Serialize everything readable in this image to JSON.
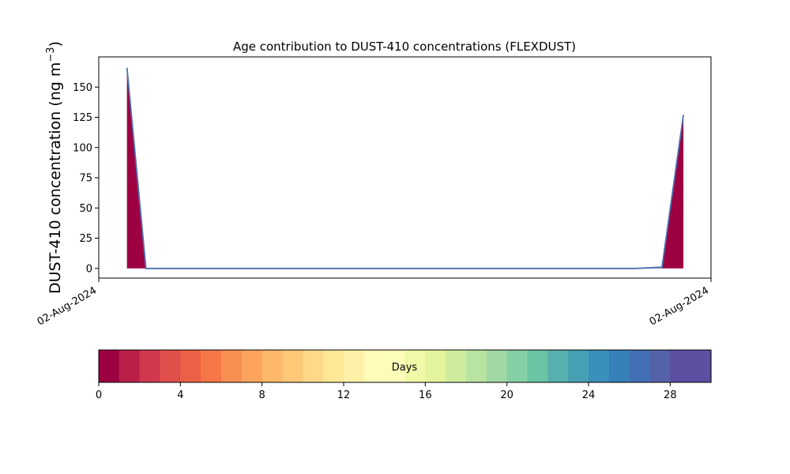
{
  "chart_data": [
    {
      "type": "area",
      "title": "Age contribution to DUST-410 concentrations (FLEXDUST)",
      "ylabel": "DUST-410 concentration (ng m",
      "ylabel_sup": "−3",
      "ylabel_tail": ")",
      "xlabel": "",
      "x_tick_labels": [
        "02-Aug-2024",
        "02-Aug-2024"
      ],
      "x_domain": [
        0,
        1
      ],
      "ylim": [
        -8,
        175
      ],
      "y_ticks": [
        0,
        25,
        50,
        75,
        100,
        125,
        150
      ],
      "grid": false,
      "fill_color": "#9e0142",
      "line_color": "#4b6fad",
      "x": [
        0.046,
        0.077,
        0.877,
        0.92,
        0.955
      ],
      "total": [
        166,
        0,
        0,
        1,
        127
      ],
      "series": [
        {
          "age_bin": 0,
          "values": [
            166,
            0,
            0,
            0,
            127
          ]
        },
        {
          "age_bin": 27,
          "values": [
            0,
            0,
            0,
            1,
            0
          ]
        }
      ]
    },
    {
      "type": "heatmap",
      "label": "Days",
      "min": 0,
      "max": 30,
      "ticks": [
        0,
        4,
        8,
        12,
        16,
        20,
        24,
        28
      ],
      "colors": [
        "#9e0142",
        "#b91f48",
        "#d0384e",
        "#e04f4a",
        "#ec6145",
        "#f57748",
        "#f98e52",
        "#fca45e",
        "#fdb869",
        "#fec877",
        "#fed987",
        "#fee796",
        "#fff1a8",
        "#fffbb8",
        "#fbfdb8",
        "#f0f9a8",
        "#e4f49c",
        "#cfec9d",
        "#b8e3a1",
        "#a0d9a3",
        "#86cfa5",
        "#6bc4a4",
        "#56b0ad",
        "#45a0b2",
        "#3990ba",
        "#3580b9",
        "#4370b4",
        "#5462a9",
        "#5e4fa2",
        "#5e4fa2"
      ]
    }
  ]
}
